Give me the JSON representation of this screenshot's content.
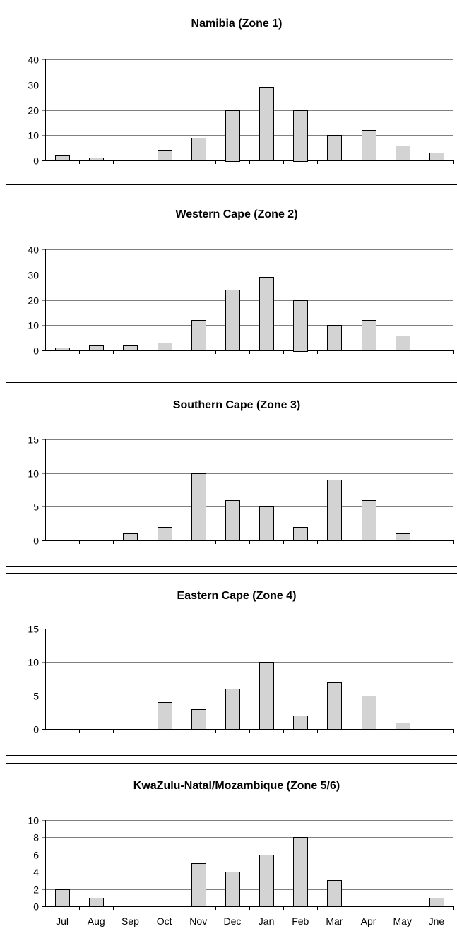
{
  "categories": [
    "Jul",
    "Aug",
    "Sep",
    "Oct",
    "Nov",
    "Dec",
    "Jan",
    "Feb",
    "Mar",
    "Apr",
    "May",
    "Jne"
  ],
  "colors": {
    "bar_fill": "#d3d3d3",
    "bar_stroke": "#000000",
    "grid": "#808080",
    "frame": "#000000"
  },
  "chart_data": [
    {
      "type": "bar",
      "title": "Namibia (Zone 1)",
      "categories": [
        "Jul",
        "Aug",
        "Sep",
        "Oct",
        "Nov",
        "Dec",
        "Jan",
        "Feb",
        "Mar",
        "Apr",
        "May",
        "Jne"
      ],
      "values": [
        2,
        1,
        0,
        4,
        9,
        20,
        29,
        20,
        10,
        12,
        6,
        3
      ],
      "ylim": [
        0,
        40
      ],
      "yticks": [
        0,
        10,
        20,
        30,
        40
      ],
      "show_category_labels": false
    },
    {
      "type": "bar",
      "title": "Western Cape (Zone 2)",
      "categories": [
        "Jul",
        "Aug",
        "Sep",
        "Oct",
        "Nov",
        "Dec",
        "Jan",
        "Feb",
        "Mar",
        "Apr",
        "May",
        "Jne"
      ],
      "values": [
        1,
        2,
        2,
        3,
        12,
        24,
        29,
        20,
        10,
        12,
        6,
        0
      ],
      "ylim": [
        0,
        40
      ],
      "yticks": [
        0,
        10,
        20,
        30,
        40
      ],
      "show_category_labels": false
    },
    {
      "type": "bar",
      "title": "Southern Cape (Zone 3)",
      "categories": [
        "Jul",
        "Aug",
        "Sep",
        "Oct",
        "Nov",
        "Dec",
        "Jan",
        "Feb",
        "Mar",
        "Apr",
        "May",
        "Jne"
      ],
      "values": [
        0,
        0,
        1,
        2,
        10,
        6,
        5,
        2,
        9,
        6,
        1,
        0
      ],
      "ylim": [
        0,
        15
      ],
      "yticks": [
        0,
        5,
        10,
        15
      ],
      "show_category_labels": false
    },
    {
      "type": "bar",
      "title": "Eastern Cape (Zone 4)",
      "categories": [
        "Jul",
        "Aug",
        "Sep",
        "Oct",
        "Nov",
        "Dec",
        "Jan",
        "Feb",
        "Mar",
        "Apr",
        "May",
        "Jne"
      ],
      "values": [
        0,
        0,
        0,
        4,
        3,
        6,
        10,
        2,
        7,
        5,
        1,
        0
      ],
      "ylim": [
        0,
        15
      ],
      "yticks": [
        0,
        5,
        10,
        15
      ],
      "show_category_labels": false
    },
    {
      "type": "bar",
      "title": "KwaZulu-Natal/Mozambique (Zone 5/6)",
      "categories": [
        "Jul",
        "Aug",
        "Sep",
        "Oct",
        "Nov",
        "Dec",
        "Jan",
        "Feb",
        "Mar",
        "Apr",
        "May",
        "Jne"
      ],
      "values": [
        2,
        1,
        0,
        0,
        5,
        4,
        6,
        8,
        3,
        0,
        0,
        1
      ],
      "ylim": [
        0,
        10
      ],
      "yticks": [
        0,
        2,
        4,
        6,
        8,
        10
      ],
      "show_category_labels": true
    }
  ]
}
